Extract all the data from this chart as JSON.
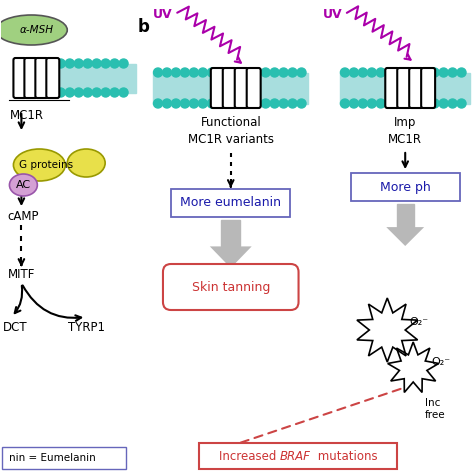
{
  "bg_color": "#ffffff",
  "label_b": "b",
  "uv_color": "#aa00aa",
  "membrane_color": "#2abfb0",
  "membrane_inner_color": "#a8dede",
  "panel_a": {
    "alpha_msh_label": "α-MSH",
    "mc1r_label": "MC1R",
    "g_proteins_label": "G proteins",
    "ac_label": "AC",
    "camp_label": "cAMP",
    "mitf_label": "MITF",
    "dct_label": "DCT",
    "tyrp1_label": "TYRP1",
    "legend_label": "nin = Eumelanin",
    "ellipse_color_gprotein": "#e8e04a",
    "ellipse_color_ac": "#d4a0d4",
    "ellipse_color_msh": "#a0d080"
  },
  "panel_b_left": {
    "uv_label": "UV",
    "label": "Functional\nMC1R variants",
    "box1_label": "More eumelanin",
    "box1_text_color": "#1a1aaa",
    "box2_label": "Skin tanning",
    "box2_text_color": "#cc3333",
    "braf_text_color": "#cc3333"
  },
  "panel_b_right": {
    "uv_label": "UV",
    "label": "Imp\nMC1R",
    "box1_label": "More ph",
    "box1_text_color": "#1a1aaa",
    "o2_label1": "O₂⁻",
    "o2_label2": "O₂⁻",
    "inc_label": "Inc",
    "free_label": "free"
  }
}
